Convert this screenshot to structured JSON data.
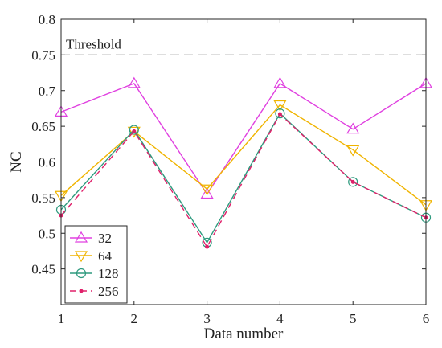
{
  "chart_data": {
    "type": "line",
    "xlabel": "Data number",
    "ylabel": "NC",
    "xlim": [
      1,
      6
    ],
    "ylim": [
      0.4,
      0.8
    ],
    "x": [
      1,
      2,
      3,
      4,
      5,
      6
    ],
    "xticks": [
      "1",
      "2",
      "3",
      "4",
      "5",
      "6"
    ],
    "yticks": [
      "0.45",
      "0.5",
      "0.55",
      "0.6",
      "0.65",
      "0.7",
      "0.75",
      "0.8"
    ],
    "grid": false,
    "legend_position": "bottom-left",
    "threshold": {
      "label": "Threshold",
      "value": 0.75,
      "color": "#7f7f7f"
    },
    "series": [
      {
        "name": "32",
        "color": "#e040e0",
        "marker": "triangle-up",
        "dash": "solid",
        "values": [
          0.67,
          0.71,
          0.555,
          0.71,
          0.646,
          0.71
        ]
      },
      {
        "name": "64",
        "color": "#f0b400",
        "marker": "triangle-down",
        "dash": "solid",
        "values": [
          0.553,
          0.643,
          0.562,
          0.68,
          0.617,
          0.54
        ]
      },
      {
        "name": "128",
        "color": "#2e9a7e",
        "marker": "circle",
        "dash": "solid",
        "values": [
          0.533,
          0.645,
          0.487,
          0.668,
          0.572,
          0.522
        ]
      },
      {
        "name": "256",
        "color": "#e0206a",
        "marker": "dot",
        "dash": "dashed",
        "values": [
          0.525,
          0.643,
          0.481,
          0.667,
          0.572,
          0.522
        ]
      }
    ]
  }
}
